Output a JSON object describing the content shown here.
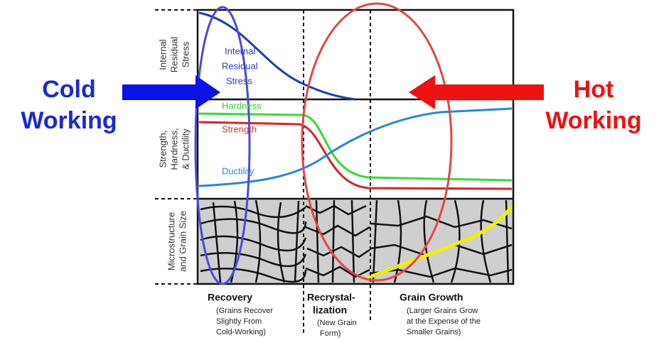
{
  "side_labels": {
    "cold": [
      "Cold",
      "Working"
    ],
    "hot": [
      "Hot",
      "Working"
    ]
  },
  "panels": [
    {
      "axis_label": [
        "Internal",
        "Residual",
        "Stress"
      ]
    },
    {
      "axis_label": [
        "Strength,",
        "Hardness,",
        "& Ductility"
      ]
    },
    {
      "axis_label": [
        "Microstructure",
        "and Grain Size"
      ]
    }
  ],
  "curve_labels": {
    "stress": [
      "Internal",
      "Residual",
      "Stress"
    ],
    "hardness": "Hardness",
    "strength": "Strength",
    "ductility": "Ductility"
  },
  "stages": [
    {
      "title": [
        "Recovery"
      ],
      "note": [
        "(Grains Recover",
        "Slightly From",
        "Cold-Working)"
      ]
    },
    {
      "title": [
        "Recrystal-",
        "lization"
      ],
      "note": [
        "(New Grain",
        "Form)"
      ]
    },
    {
      "title": [
        "Grain Growth"
      ],
      "note": [
        "(Larger Grains Grow",
        "at the Expense of the",
        "Smaller Grains)"
      ]
    }
  ]
}
